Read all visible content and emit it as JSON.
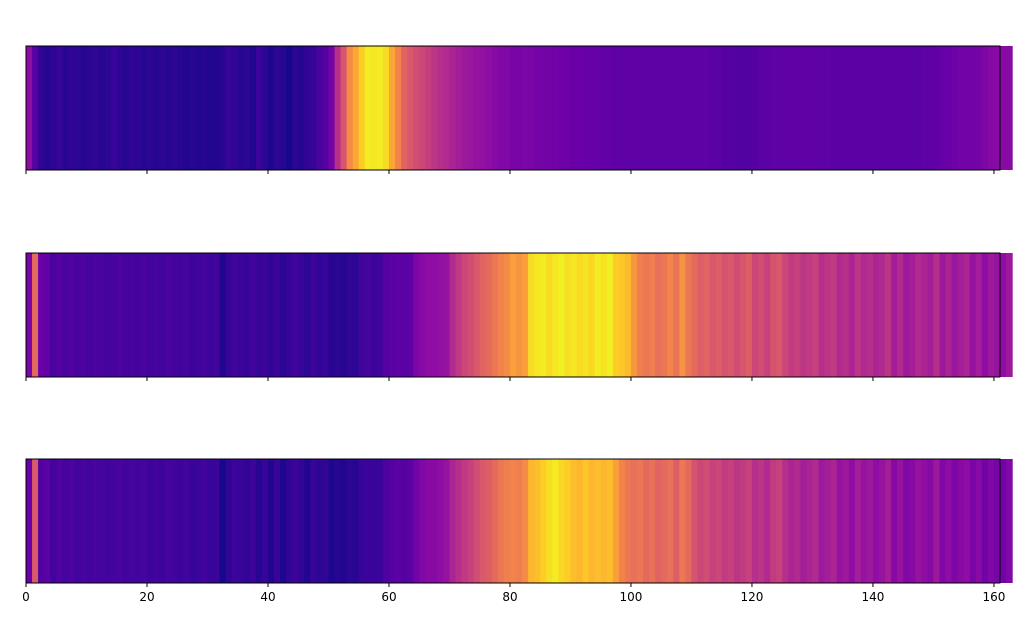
{
  "chart_data": {
    "type": "heatmap",
    "colormap": "plasma",
    "x_axis": {
      "xlim": [
        0,
        161
      ],
      "ticks": [
        0,
        20,
        40,
        60,
        80,
        100,
        120,
        140,
        160
      ],
      "tick_labels": [
        "0",
        "20",
        "40",
        "60",
        "80",
        "100",
        "120",
        "140",
        "160"
      ],
      "tick_labels_shown_on": "bottom panel only"
    },
    "y_axis": {
      "ticks_shown": false
    },
    "value_scale": "0 = darkest (deep blue), 1 = brightest (yellow), per panel",
    "panels": [
      {
        "name": "",
        "values": [
          0.3,
          0.15,
          0.07,
          0.05,
          0.06,
          0.08,
          0.05,
          0.07,
          0.06,
          0.05,
          0.06,
          0.07,
          0.05,
          0.06,
          0.08,
          0.06,
          0.05,
          0.07,
          0.06,
          0.05,
          0.06,
          0.05,
          0.06,
          0.05,
          0.06,
          0.05,
          0.04,
          0.05,
          0.04,
          0.05,
          0.04,
          0.04,
          0.05,
          0.08,
          0.07,
          0.05,
          0.06,
          0.04,
          0.09,
          0.06,
          0.03,
          0.06,
          0.05,
          0.02,
          0.06,
          0.05,
          0.07,
          0.08,
          0.12,
          0.15,
          0.22,
          0.42,
          0.55,
          0.72,
          0.8,
          0.9,
          0.97,
          0.96,
          0.97,
          0.93,
          0.8,
          0.7,
          0.6,
          0.56,
          0.52,
          0.5,
          0.47,
          0.44,
          0.42,
          0.4,
          0.38,
          0.36,
          0.34,
          0.33,
          0.32,
          0.31,
          0.3,
          0.28,
          0.26,
          0.26,
          0.24,
          0.24,
          0.25,
          0.24,
          0.23,
          0.23,
          0.22,
          0.22,
          0.21,
          0.21,
          0.2,
          0.2,
          0.19,
          0.19,
          0.19,
          0.18,
          0.18,
          0.17,
          0.17,
          0.17,
          0.17,
          0.17,
          0.17,
          0.17,
          0.17,
          0.17,
          0.17,
          0.17,
          0.17,
          0.17,
          0.17,
          0.17,
          0.17,
          0.16,
          0.16,
          0.15,
          0.15,
          0.14,
          0.14,
          0.14,
          0.15,
          0.16,
          0.16,
          0.17,
          0.17,
          0.17,
          0.17,
          0.17,
          0.17,
          0.17,
          0.17,
          0.17,
          0.17,
          0.16,
          0.16,
          0.16,
          0.16,
          0.16,
          0.16,
          0.16,
          0.16,
          0.16,
          0.16,
          0.16,
          0.16,
          0.16,
          0.16,
          0.16,
          0.17,
          0.17,
          0.18,
          0.19,
          0.2,
          0.21,
          0.22,
          0.22,
          0.22,
          0.23,
          0.25,
          0.27,
          0.28,
          0.28,
          0.28
        ]
      },
      {
        "name": "",
        "values": [
          0.24,
          0.62,
          0.2,
          0.18,
          0.12,
          0.15,
          0.12,
          0.14,
          0.12,
          0.13,
          0.11,
          0.13,
          0.12,
          0.11,
          0.12,
          0.13,
          0.11,
          0.12,
          0.11,
          0.12,
          0.1,
          0.11,
          0.1,
          0.12,
          0.11,
          0.1,
          0.11,
          0.09,
          0.1,
          0.11,
          0.09,
          0.1,
          0.04,
          0.08,
          0.1,
          0.09,
          0.08,
          0.1,
          0.08,
          0.09,
          0.07,
          0.09,
          0.06,
          0.08,
          0.1,
          0.08,
          0.06,
          0.09,
          0.07,
          0.08,
          0.05,
          0.06,
          0.05,
          0.07,
          0.06,
          0.1,
          0.11,
          0.09,
          0.1,
          0.15,
          0.16,
          0.17,
          0.16,
          0.17,
          0.25,
          0.28,
          0.3,
          0.3,
          0.31,
          0.32,
          0.4,
          0.45,
          0.5,
          0.52,
          0.56,
          0.6,
          0.62,
          0.66,
          0.7,
          0.72,
          0.78,
          0.75,
          0.78,
          0.93,
          0.96,
          0.97,
          0.93,
          0.96,
          0.98,
          0.94,
          0.96,
          0.93,
          0.95,
          0.92,
          0.97,
          0.95,
          0.98,
          0.9,
          0.88,
          0.85,
          0.76,
          0.68,
          0.66,
          0.68,
          0.64,
          0.66,
          0.7,
          0.65,
          0.74,
          0.66,
          0.62,
          0.58,
          0.6,
          0.56,
          0.58,
          0.54,
          0.56,
          0.52,
          0.55,
          0.58,
          0.5,
          0.52,
          0.48,
          0.54,
          0.56,
          0.5,
          0.46,
          0.48,
          0.44,
          0.46,
          0.48,
          0.42,
          0.44,
          0.46,
          0.4,
          0.42,
          0.38,
          0.44,
          0.4,
          0.42,
          0.38,
          0.4,
          0.44,
          0.36,
          0.4,
          0.34,
          0.36,
          0.4,
          0.38,
          0.36,
          0.42,
          0.34,
          0.38,
          0.33,
          0.36,
          0.38,
          0.32,
          0.36,
          0.3,
          0.34,
          0.32,
          0.3,
          0.34
        ]
      },
      {
        "name": "",
        "values": [
          0.2,
          0.56,
          0.14,
          0.16,
          0.1,
          0.14,
          0.11,
          0.13,
          0.1,
          0.12,
          0.1,
          0.12,
          0.11,
          0.1,
          0.11,
          0.12,
          0.1,
          0.11,
          0.1,
          0.11,
          0.09,
          0.1,
          0.09,
          0.11,
          0.1,
          0.09,
          0.1,
          0.08,
          0.09,
          0.1,
          0.08,
          0.09,
          0.02,
          0.07,
          0.09,
          0.08,
          0.07,
          0.09,
          0.05,
          0.08,
          0.04,
          0.08,
          0.03,
          0.07,
          0.09,
          0.07,
          0.04,
          0.08,
          0.06,
          0.07,
          0.03,
          0.05,
          0.04,
          0.06,
          0.05,
          0.08,
          0.09,
          0.08,
          0.09,
          0.13,
          0.15,
          0.16,
          0.15,
          0.16,
          0.22,
          0.26,
          0.28,
          0.28,
          0.3,
          0.32,
          0.38,
          0.42,
          0.45,
          0.48,
          0.52,
          0.56,
          0.58,
          0.62,
          0.66,
          0.68,
          0.7,
          0.68,
          0.72,
          0.84,
          0.86,
          0.9,
          0.94,
          0.97,
          0.92,
          0.9,
          0.86,
          0.84,
          0.88,
          0.84,
          0.86,
          0.84,
          0.86,
          0.78,
          0.7,
          0.66,
          0.64,
          0.66,
          0.62,
          0.64,
          0.6,
          0.62,
          0.64,
          0.58,
          0.66,
          0.62,
          0.54,
          0.5,
          0.52,
          0.48,
          0.5,
          0.46,
          0.48,
          0.44,
          0.46,
          0.48,
          0.42,
          0.44,
          0.4,
          0.46,
          0.48,
          0.42,
          0.38,
          0.4,
          0.36,
          0.38,
          0.4,
          0.34,
          0.36,
          0.38,
          0.32,
          0.34,
          0.3,
          0.36,
          0.32,
          0.34,
          0.3,
          0.32,
          0.36,
          0.28,
          0.32,
          0.26,
          0.28,
          0.32,
          0.3,
          0.28,
          0.34,
          0.26,
          0.3,
          0.25,
          0.28,
          0.3,
          0.24,
          0.28,
          0.22,
          0.26,
          0.24,
          0.22,
          0.26
        ]
      }
    ]
  }
}
